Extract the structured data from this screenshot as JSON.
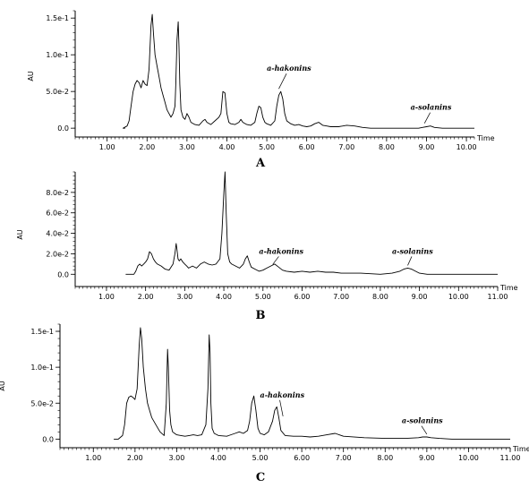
{
  "chart_data": [
    {
      "type": "line",
      "panel_label": "A",
      "xlabel": "Time",
      "ylabel": "AU",
      "xlim": [
        0.2,
        10.2
      ],
      "ylim": [
        -0.012,
        0.16
      ],
      "xticks": [
        1.0,
        2.0,
        3.0,
        4.0,
        5.0,
        6.0,
        7.0,
        8.0,
        9.0,
        10.0
      ],
      "xtick_labels": [
        "1.00",
        "2.00",
        "3.00",
        "4.00",
        "5.00",
        "6.00",
        "7.00",
        "8.00",
        "9.00",
        "10.00"
      ],
      "yticks": [
        0.0,
        0.05,
        0.1,
        0.15
      ],
      "ytick_labels": [
        "0.0",
        "5.0e-2",
        "1.0e-1",
        "1.5e-1"
      ],
      "series": [
        {
          "x": [
            1.4,
            1.5,
            1.55,
            1.6,
            1.65,
            1.7,
            1.75,
            1.8,
            1.85,
            1.9,
            1.95,
            2.0,
            2.05,
            2.1,
            2.13,
            2.16,
            2.2,
            2.25,
            2.3,
            2.35,
            2.4,
            2.45,
            2.5,
            2.55,
            2.6,
            2.65,
            2.7,
            2.72,
            2.75,
            2.78,
            2.8,
            2.82,
            2.85,
            2.9,
            2.95,
            3.0,
            3.05,
            3.1,
            3.2,
            3.3,
            3.4,
            3.45,
            3.5,
            3.6,
            3.7,
            3.8,
            3.85,
            3.9,
            3.95,
            4.0,
            4.05,
            4.1,
            4.2,
            4.3,
            4.35,
            4.4,
            4.5,
            4.6,
            4.7,
            4.75,
            4.8,
            4.85,
            4.9,
            4.95,
            5.0,
            5.1,
            5.2,
            5.25,
            5.3,
            5.35,
            5.4,
            5.45,
            5.5,
            5.6,
            5.7,
            5.8,
            5.9,
            6.0,
            6.1,
            6.2,
            6.3,
            6.4,
            6.5,
            6.6,
            6.7,
            6.8,
            7.0,
            7.2,
            7.4,
            7.6,
            7.8,
            8.0,
            8.2,
            8.4,
            8.6,
            8.8,
            8.9,
            9.0,
            9.1,
            9.2,
            9.4,
            9.6,
            9.8,
            10.0,
            10.2
          ],
          "y": [
            0.0,
            0.003,
            0.01,
            0.03,
            0.05,
            0.06,
            0.065,
            0.062,
            0.055,
            0.065,
            0.06,
            0.058,
            0.08,
            0.14,
            0.155,
            0.13,
            0.1,
            0.085,
            0.07,
            0.055,
            0.045,
            0.035,
            0.025,
            0.02,
            0.015,
            0.02,
            0.03,
            0.06,
            0.12,
            0.145,
            0.11,
            0.06,
            0.025,
            0.015,
            0.012,
            0.02,
            0.015,
            0.008,
            0.005,
            0.004,
            0.01,
            0.012,
            0.008,
            0.005,
            0.01,
            0.015,
            0.02,
            0.05,
            0.048,
            0.02,
            0.008,
            0.006,
            0.005,
            0.008,
            0.012,
            0.008,
            0.005,
            0.004,
            0.008,
            0.02,
            0.03,
            0.028,
            0.015,
            0.008,
            0.006,
            0.004,
            0.01,
            0.03,
            0.045,
            0.05,
            0.04,
            0.02,
            0.01,
            0.006,
            0.004,
            0.005,
            0.003,
            0.002,
            0.003,
            0.006,
            0.008,
            0.004,
            0.003,
            0.002,
            0.002,
            0.002,
            0.004,
            0.003,
            0.001,
            0.0,
            0.0,
            0.0,
            0.0,
            0.0,
            0.0,
            0.0,
            0.001,
            0.002,
            0.003,
            0.001,
            0.0,
            0.0,
            0.0,
            0.0,
            0.0
          ]
        }
      ],
      "annotations": [
        {
          "text": "a-hakonins",
          "x": 5.3,
          "y": 0.05,
          "label_x": 5.0,
          "label_y": 0.078
        },
        {
          "text": "a-solanins",
          "x": 8.95,
          "y": 0.003,
          "label_x": 8.6,
          "label_y": 0.025
        }
      ]
    },
    {
      "type": "line",
      "panel_label": "B",
      "xlabel": "Time",
      "ylabel": "AU",
      "xlim": [
        0.2,
        11.0
      ],
      "ylim": [
        -0.012,
        0.1
      ],
      "xticks": [
        1.0,
        2.0,
        3.0,
        4.0,
        5.0,
        6.0,
        7.0,
        8.0,
        9.0,
        10.0,
        11.0
      ],
      "xtick_labels": [
        "1.00",
        "2.00",
        "3.00",
        "4.00",
        "5.00",
        "6.00",
        "7.00",
        "8.00",
        "9.00",
        "10.00",
        "11.00"
      ],
      "yticks": [
        0.0,
        0.02,
        0.04,
        0.06,
        0.08
      ],
      "ytick_labels": [
        "0.0",
        "2.0e-2",
        "4.0e-2",
        "6.0e-2",
        "8.0e-2"
      ],
      "series": [
        {
          "x": [
            1.5,
            1.7,
            1.75,
            1.8,
            1.85,
            1.9,
            1.95,
            2.0,
            2.05,
            2.1,
            2.15,
            2.2,
            2.25,
            2.3,
            2.4,
            2.5,
            2.6,
            2.7,
            2.75,
            2.78,
            2.8,
            2.83,
            2.86,
            2.9,
            2.95,
            3.0,
            3.05,
            3.1,
            3.2,
            3.3,
            3.4,
            3.5,
            3.6,
            3.7,
            3.8,
            3.9,
            3.95,
            4.0,
            4.03,
            4.06,
            4.1,
            4.15,
            4.2,
            4.3,
            4.4,
            4.5,
            4.55,
            4.6,
            4.65,
            4.7,
            4.8,
            4.9,
            5.0,
            5.1,
            5.2,
            5.3,
            5.4,
            5.5,
            5.6,
            5.8,
            6.0,
            6.2,
            6.4,
            6.6,
            6.8,
            7.0,
            7.5,
            8.0,
            8.3,
            8.5,
            8.6,
            8.7,
            8.8,
            8.9,
            9.0,
            9.2,
            9.5,
            10.0,
            10.5,
            11.0
          ],
          "y": [
            0.0,
            0.0,
            0.003,
            0.008,
            0.01,
            0.008,
            0.01,
            0.012,
            0.015,
            0.022,
            0.02,
            0.015,
            0.012,
            0.01,
            0.008,
            0.005,
            0.004,
            0.01,
            0.02,
            0.03,
            0.025,
            0.015,
            0.013,
            0.015,
            0.012,
            0.01,
            0.008,
            0.006,
            0.008,
            0.006,
            0.01,
            0.012,
            0.01,
            0.009,
            0.01,
            0.015,
            0.04,
            0.08,
            0.1,
            0.06,
            0.02,
            0.012,
            0.01,
            0.008,
            0.006,
            0.01,
            0.015,
            0.018,
            0.012,
            0.007,
            0.005,
            0.003,
            0.004,
            0.006,
            0.008,
            0.01,
            0.007,
            0.004,
            0.003,
            0.002,
            0.003,
            0.002,
            0.003,
            0.002,
            0.002,
            0.001,
            0.001,
            0.0,
            0.001,
            0.003,
            0.005,
            0.006,
            0.005,
            0.003,
            0.001,
            0.0,
            0.0,
            0.0,
            0.0,
            0.0
          ]
        }
      ],
      "annotations": [
        {
          "text": "a-hakonins",
          "x": 5.25,
          "y": 0.007,
          "label_x": 4.9,
          "label_y": 0.02
        },
        {
          "text": "a-solanins",
          "x": 8.7,
          "y": 0.006,
          "label_x": 8.3,
          "label_y": 0.02
        }
      ]
    },
    {
      "type": "line",
      "panel_label": "C",
      "xlabel": "Time",
      "ylabel": "AU",
      "xlim": [
        0.2,
        11.0
      ],
      "ylim": [
        -0.012,
        0.16
      ],
      "xticks": [
        1.0,
        2.0,
        3.0,
        4.0,
        5.0,
        6.0,
        7.0,
        8.0,
        9.0,
        10.0,
        11.0
      ],
      "xtick_labels": [
        "1.00",
        "2.00",
        "3.00",
        "4.00",
        "5.00",
        "6.00",
        "7.00",
        "8.00",
        "9.00",
        "10.00",
        "11.00"
      ],
      "yticks": [
        0.0,
        0.05,
        0.1,
        0.15
      ],
      "ytick_labels": [
        "0.0",
        "5.0e-2",
        "1.0e-1",
        "1.5e-1"
      ],
      "series": [
        {
          "x": [
            1.6,
            1.7,
            1.75,
            1.8,
            1.85,
            1.9,
            1.95,
            2.0,
            2.05,
            2.1,
            2.13,
            2.16,
            2.2,
            2.25,
            2.3,
            2.35,
            2.4,
            2.5,
            2.6,
            2.7,
            2.75,
            2.78,
            2.8,
            2.83,
            2.86,
            2.9,
            2.95,
            3.0,
            3.1,
            3.2,
            3.3,
            3.4,
            3.5,
            3.6,
            3.7,
            3.75,
            3.78,
            3.8,
            3.82,
            3.85,
            3.9,
            4.0,
            4.2,
            4.4,
            4.5,
            4.6,
            4.7,
            4.75,
            4.8,
            4.85,
            4.9,
            4.95,
            5.0,
            5.1,
            5.2,
            5.3,
            5.35,
            5.4,
            5.45,
            5.5,
            5.6,
            5.8,
            6.0,
            6.2,
            6.4,
            6.6,
            6.8,
            7.0,
            7.5,
            8.0,
            8.5,
            8.8,
            8.9,
            9.0,
            9.1,
            9.3,
            9.6,
            10.0,
            10.5,
            11.0
          ],
          "y": [
            0.0,
            0.005,
            0.02,
            0.05,
            0.058,
            0.06,
            0.058,
            0.055,
            0.07,
            0.13,
            0.155,
            0.14,
            0.1,
            0.07,
            0.05,
            0.04,
            0.03,
            0.02,
            0.01,
            0.005,
            0.05,
            0.125,
            0.1,
            0.04,
            0.02,
            0.01,
            0.008,
            0.006,
            0.005,
            0.004,
            0.005,
            0.006,
            0.005,
            0.006,
            0.02,
            0.07,
            0.145,
            0.12,
            0.05,
            0.015,
            0.008,
            0.005,
            0.004,
            0.008,
            0.01,
            0.008,
            0.012,
            0.025,
            0.05,
            0.06,
            0.04,
            0.015,
            0.008,
            0.006,
            0.01,
            0.025,
            0.04,
            0.045,
            0.03,
            0.012,
            0.005,
            0.004,
            0.004,
            0.003,
            0.004,
            0.006,
            0.008,
            0.004,
            0.002,
            0.001,
            0.001,
            0.002,
            0.003,
            0.003,
            0.002,
            0.001,
            0.0,
            0.0,
            0.0,
            0.0
          ]
        }
      ],
      "annotations": [
        {
          "text": "a-hakonins",
          "x": 5.55,
          "y": 0.028,
          "label_x": 5.0,
          "label_y": 0.058
        },
        {
          "text": "a-solanins",
          "x": 9.0,
          "y": 0.003,
          "label_x": 8.4,
          "label_y": 0.022
        }
      ]
    }
  ]
}
